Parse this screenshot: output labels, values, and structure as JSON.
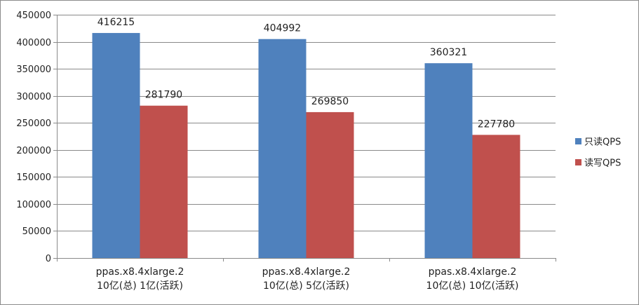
{
  "chart_data": {
    "type": "bar",
    "categories": [
      [
        "ppas.x8.4xlarge.2",
        "10亿(总) 1亿(活跃)"
      ],
      [
        "ppas.x8.4xlarge.2",
        "10亿(总) 5亿(活跃)"
      ],
      [
        "ppas.x8.4xlarge.2",
        "10亿(总) 10亿(活跃)"
      ]
    ],
    "series": [
      {
        "name": "只读QPS",
        "values": [
          416215,
          404992,
          360321
        ],
        "color": "#4f81bd"
      },
      {
        "name": "读写QPS",
        "values": [
          281790,
          269850,
          227780
        ],
        "color": "#c0504d"
      }
    ],
    "ylim": [
      0,
      450000
    ],
    "yticks": [
      0,
      50000,
      100000,
      150000,
      200000,
      250000,
      300000,
      350000,
      400000,
      450000
    ],
    "grid": true,
    "legend_position": "right",
    "title": "",
    "xlabel": "",
    "ylabel": ""
  }
}
